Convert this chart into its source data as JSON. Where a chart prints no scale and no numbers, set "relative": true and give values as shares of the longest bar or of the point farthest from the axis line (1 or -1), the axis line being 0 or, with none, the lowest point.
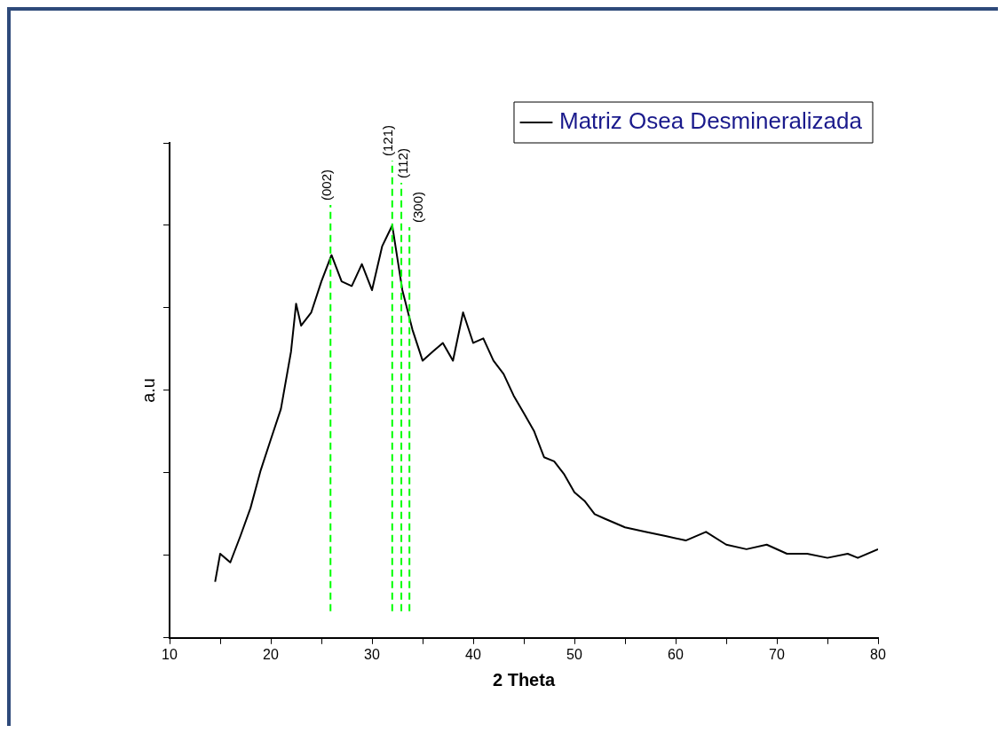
{
  "chart_data": {
    "type": "line",
    "xlabel": "2 Theta",
    "ylabel": "a.u",
    "relative": true,
    "legend": "top right",
    "tick_labels": "x",
    "grid": false,
    "marker": "none",
    "line_style": "solid",
    "xlim": [
      10,
      80
    ],
    "xticks": [
      10,
      {
        "value": 15,
        "label": null
      },
      20,
      {
        "value": 25,
        "label": null
      },
      30,
      {
        "value": 35,
        "label": null
      },
      40,
      {
        "value": 45,
        "label": null
      },
      50,
      {
        "value": 55,
        "label": null
      },
      60,
      {
        "value": 65,
        "label": null
      },
      70,
      {
        "value": 75,
        "label": null
      },
      80
    ],
    "series": [
      {
        "name": "Matriz Osea Desmineralizada",
        "color": "#000000",
        "x": [
          14.5,
          15,
          16,
          17,
          18,
          19,
          20,
          21,
          22,
          22.5,
          23,
          24,
          25,
          26,
          27,
          28,
          29,
          30,
          31,
          32,
          33,
          34,
          35,
          36,
          37,
          38,
          39,
          40,
          41,
          42,
          43,
          44,
          45,
          46,
          47,
          48,
          49,
          50,
          51,
          52,
          53,
          55,
          57,
          59,
          61,
          63,
          65,
          67,
          69,
          71,
          73,
          75,
          77,
          78,
          80
        ],
        "values": [
          0.136,
          0.204,
          0.183,
          0.247,
          0.315,
          0.406,
          0.481,
          0.555,
          0.694,
          0.81,
          0.757,
          0.789,
          0.864,
          0.928,
          0.864,
          0.853,
          0.906,
          0.843,
          0.949,
          1.0,
          0.843,
          0.747,
          0.672,
          0.694,
          0.715,
          0.672,
          0.789,
          0.715,
          0.726,
          0.672,
          0.64,
          0.587,
          0.545,
          0.502,
          0.438,
          0.428,
          0.396,
          0.353,
          0.332,
          0.3,
          0.289,
          0.268,
          0.257,
          0.247,
          0.236,
          0.257,
          0.226,
          0.215,
          0.226,
          0.204,
          0.204,
          0.194,
          0.204,
          0.194,
          0.215
        ]
      }
    ],
    "ref_lines": [
      {
        "axis": "x",
        "value": 25.9,
        "color": "#00ff00",
        "line_style": "dashed"
      },
      {
        "axis": "x",
        "value": 32.0,
        "color": "#00ff00",
        "line_style": "dashed"
      },
      {
        "axis": "x",
        "value": 32.9,
        "color": "#00ff00",
        "line_style": "dashed"
      },
      {
        "axis": "x",
        "value": 33.7,
        "color": "#00ff00",
        "line_style": "dashed"
      }
    ],
    "annotations": [
      "(002)",
      "(121)",
      "(112)",
      "(300)"
    ]
  }
}
